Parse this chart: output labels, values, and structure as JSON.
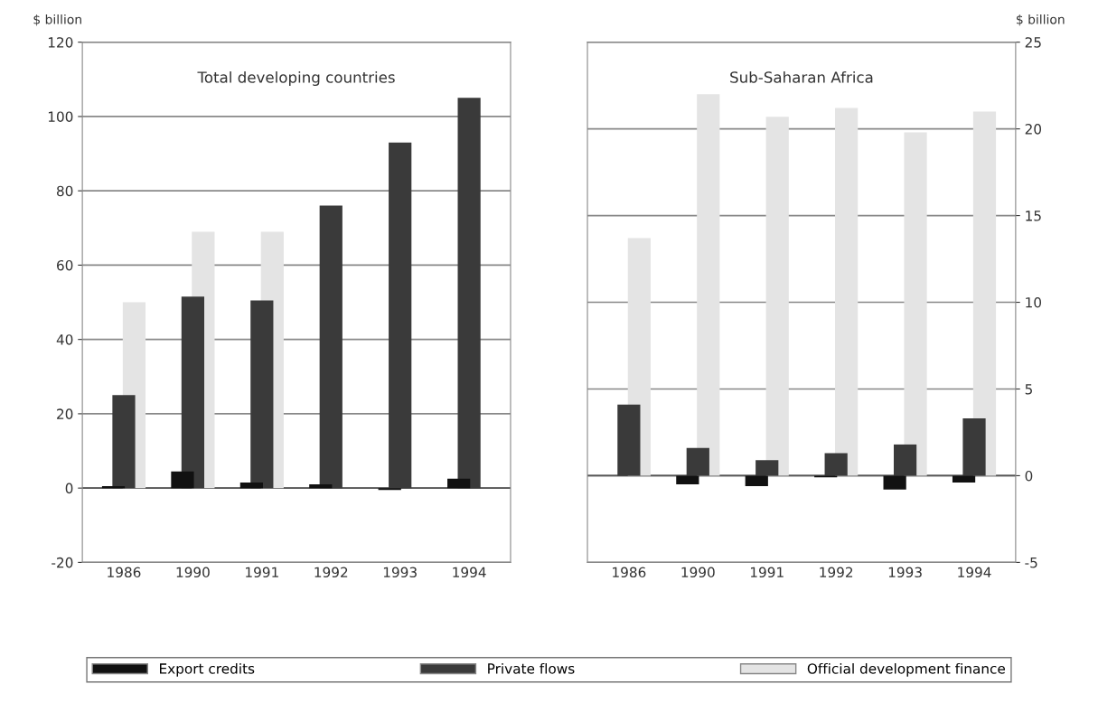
{
  "chart_data": [
    {
      "type": "bar",
      "title": "Total developing countries",
      "ylabel": "$ billion",
      "categories": [
        "1986",
        "1990",
        "1991",
        "1992",
        "1993",
        "1994"
      ],
      "series": [
        {
          "name": "Official development finance",
          "color": "#e4e4e4",
          "values": [
            50,
            69,
            69,
            null,
            null,
            null
          ]
        },
        {
          "name": "Private flows",
          "color": "#3a3a3a",
          "values": [
            25,
            51.5,
            50.5,
            76,
            93,
            105
          ]
        },
        {
          "name": "Export credits",
          "color": "#111111",
          "values": [
            0.5,
            4.5,
            1.5,
            1,
            -0.5,
            2.5
          ]
        }
      ],
      "ylim": [
        -20,
        120
      ],
      "yticks": [
        -20,
        0,
        20,
        40,
        60,
        80,
        100,
        120
      ],
      "grid": "y",
      "legend": "bottom"
    },
    {
      "type": "bar",
      "title": "Sub-Saharan Africa",
      "ylabel": "$ billion",
      "categories": [
        "1986",
        "1990",
        "1991",
        "1992",
        "1993",
        "1994"
      ],
      "series": [
        {
          "color": "#e4e4e4",
          "values": [
            13.7,
            22,
            20.7,
            21.2,
            19.8,
            21
          ]
        },
        {
          "color": "#3a3a3a",
          "values": [
            4.1,
            1.6,
            0.9,
            1.3,
            1.8,
            3.3
          ]
        },
        {
          "color": "#111111",
          "values": [
            0,
            -0.5,
            -0.6,
            -0.1,
            -0.8,
            -0.4
          ]
        }
      ],
      "ylim": [
        -5,
        25
      ],
      "yticks": [
        -5,
        0,
        5,
        10,
        15,
        20,
        25
      ],
      "grid": "y"
    }
  ]
}
